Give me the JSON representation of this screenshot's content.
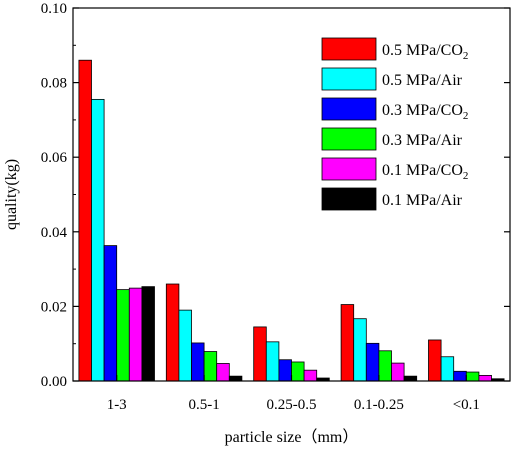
{
  "chart_data": {
    "type": "bar",
    "xlabel": "particle size（mm）",
    "ylabel": "quality(kg)",
    "ylim": [
      0,
      0.1
    ],
    "yticks": [
      "0.00",
      "0.02",
      "0.04",
      "0.06",
      "0.08",
      "0.10"
    ],
    "categories": [
      "1-3",
      "0.5-1",
      "0.25-0.5",
      "0.1-0.25",
      "<0.1"
    ],
    "series": [
      {
        "name": "0.5 MPa/CO2",
        "label_main": "0.5 MPa/CO",
        "label_sub": "2",
        "color": "#ff0000",
        "values": [
          0.086,
          0.026,
          0.0145,
          0.0205,
          0.011
        ]
      },
      {
        "name": "0.5 MPa/Air",
        "label_main": "0.5 MPa/Air",
        "label_sub": "",
        "color": "#00ffff",
        "values": [
          0.0755,
          0.019,
          0.0105,
          0.0167,
          0.0065
        ]
      },
      {
        "name": "0.3 MPa/CO2",
        "label_main": "0.3 MPa/CO",
        "label_sub": "2",
        "color": "#0000ff",
        "values": [
          0.0363,
          0.0102,
          0.0057,
          0.0101,
          0.0026
        ]
      },
      {
        "name": "0.3 MPa/Air",
        "label_main": "0.3 MPa/Air",
        "label_sub": "",
        "color": "#00ff00",
        "values": [
          0.0245,
          0.0079,
          0.0051,
          0.0081,
          0.0024
        ]
      },
      {
        "name": "0.1 MPa/CO2",
        "label_main": "0.1 MPa/CO",
        "label_sub": "2",
        "color": "#ff00ff",
        "values": [
          0.0249,
          0.0047,
          0.0029,
          0.0048,
          0.0015
        ]
      },
      {
        "name": "0.1 MPa/Air",
        "label_main": "0.1 MPa/Air",
        "label_sub": "",
        "color": "#000000",
        "values": [
          0.0253,
          0.0013,
          0.0008,
          0.0013,
          0.0006
        ]
      }
    ],
    "legend_position": "top-right",
    "grid": false
  }
}
